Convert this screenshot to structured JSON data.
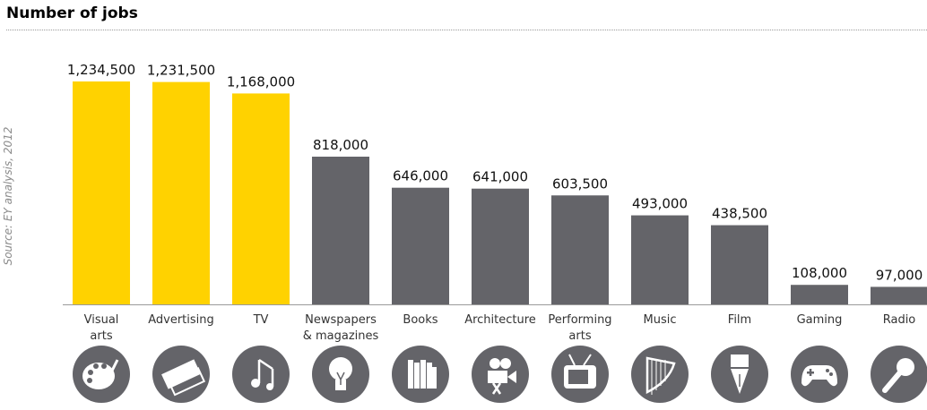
{
  "title": "Number of jobs",
  "source": "Source: EY analysis, 2012",
  "colors": {
    "highlight": "#FFD200",
    "default": "#646469",
    "icon": "#646469"
  },
  "chart_data": {
    "type": "bar",
    "title": "Number of jobs",
    "categories": [
      "Visual\narts",
      "Advertising",
      "TV",
      "Newspapers\n& magazines",
      "Books",
      "Architecture",
      "Performing\narts",
      "Music",
      "Film",
      "Gaming",
      "Radio"
    ],
    "values": [
      1234500,
      1231500,
      1168000,
      818000,
      646000,
      641000,
      603500,
      493000,
      438500,
      108000,
      97000
    ],
    "value_labels": [
      "1,234,500",
      "1,231,500",
      "1,168,000",
      "818,000",
      "646,000",
      "641,000",
      "603,500",
      "493,000",
      "438,500",
      "108,000",
      "97,000"
    ],
    "highlighted": [
      true,
      true,
      true,
      false,
      false,
      false,
      false,
      false,
      false,
      false,
      false
    ],
    "icons": [
      "palette-icon",
      "ticket-icon",
      "music-notes-icon",
      "lightbulb-icon",
      "books-icon",
      "film-camera-icon",
      "television-icon",
      "harp-icon",
      "fountain-pen-icon",
      "gamepad-icon",
      "microphone-icon"
    ],
    "ylim": [
      0,
      1234500
    ],
    "grid": false,
    "legend": "none"
  }
}
